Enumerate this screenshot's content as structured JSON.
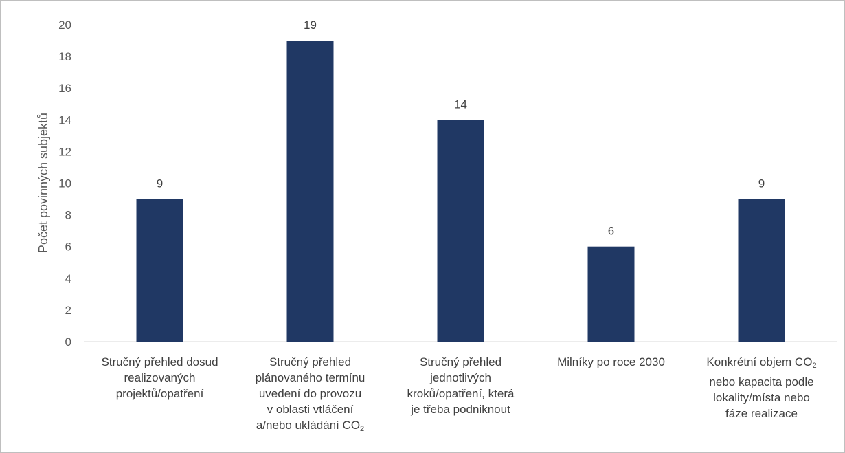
{
  "chart_data": {
    "type": "bar",
    "ylabel": "Počet povinných subjektů",
    "xlabel": "",
    "ylim": [
      0,
      20
    ],
    "yticks": [
      0,
      2,
      4,
      6,
      8,
      10,
      12,
      14,
      16,
      18,
      20
    ],
    "grid": false,
    "bar_color": "#203864",
    "categories": [
      {
        "lines": [
          "Stručný přehled dosud",
          "realizovaných",
          "projektů/opatření"
        ]
      },
      {
        "lines": [
          "Stručný přehled",
          "plánovaného termínu",
          "uvedení do provozu",
          "v oblasti vtláčení",
          "a/nebo ukládání CO|2|"
        ]
      },
      {
        "lines": [
          "Stručný přehled",
          "jednotlivých",
          "kroků/opatření, která",
          "je třeba podniknout"
        ]
      },
      {
        "lines": [
          "Milníky po roce 2030"
        ]
      },
      {
        "lines": [
          "Konkrétní objem CO|2|",
          "nebo kapacita podle",
          "lokality/místa nebo",
          "fáze realizace"
        ]
      }
    ],
    "values": [
      9,
      19,
      14,
      6,
      9
    ]
  }
}
